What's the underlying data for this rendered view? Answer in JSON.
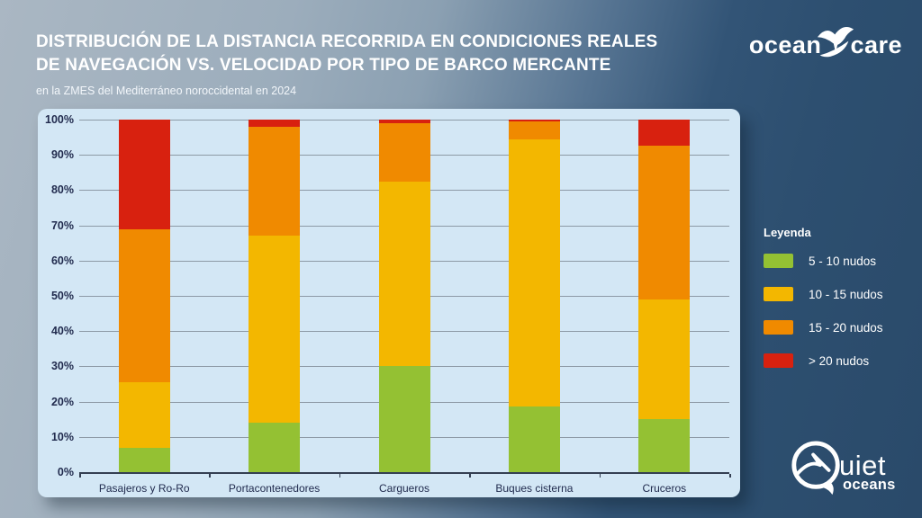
{
  "header": {
    "title_line1": "DISTRIBUCIÓN DE LA DISTANCIA RECORRIDA EN CONDICIONES REALES",
    "title_line2": "DE NAVEGACIÓN VS. VELOCIDAD POR TIPO DE BARCO MERCANTE",
    "subtitle": "en la ZMES del Mediterráneo noroccidental en 2024"
  },
  "brand": {
    "oceancare_left": "ocean",
    "oceancare_right": "care",
    "quietoceans_rest": "uiet",
    "quietoceans_sub": "oceans"
  },
  "legend": {
    "title": "Leyenda",
    "items": [
      {
        "label": "5 - 10 nudos",
        "color": "#94c133"
      },
      {
        "label": "10 - 15 nudos",
        "color": "#f3b700"
      },
      {
        "label": "15 - 20 nudos",
        "color": "#f08a00"
      },
      {
        "label": "> 20 nudos",
        "color": "#d8210f"
      }
    ]
  },
  "chart_data": {
    "type": "bar",
    "stacked": true,
    "unit": "percent",
    "title": "Distribución de la distancia recorrida en condiciones reales de navegación vs. velocidad por tipo de barco mercante",
    "categories": [
      "Pasajeros y Ro-Ro",
      "Portacontenedores",
      "Cargueros",
      "Buques cisterna",
      "Cruceros"
    ],
    "series": [
      {
        "name": "5 - 10 nudos",
        "color": "#94c133",
        "values": [
          7,
          14,
          30,
          18.5,
          15
        ]
      },
      {
        "name": "10 - 15 nudos",
        "color": "#f3b700",
        "values": [
          18.5,
          53,
          52.5,
          76,
          34
        ]
      },
      {
        "name": "15 - 20 nudos",
        "color": "#f08a00",
        "values": [
          43.5,
          31,
          16.5,
          5,
          43.5
        ]
      },
      {
        "name": "> 20 nudos",
        "color": "#d8210f",
        "values": [
          31,
          2,
          1,
          0.5,
          7.5
        ]
      }
    ],
    "ylim": [
      0,
      100
    ],
    "yticks": [
      "100%",
      "90%",
      "80%",
      "70%",
      "60%",
      "50%",
      "40%",
      "30%",
      "20%",
      "10%",
      "0%"
    ],
    "grid": true,
    "legend_position": "right",
    "colors": {
      "panel_background": "#d3e7f5",
      "gridline": "#8d9aa6",
      "axis_text": "#212b4e",
      "background_light": "#aab7c3",
      "background_dark": "#2d4f70"
    }
  }
}
